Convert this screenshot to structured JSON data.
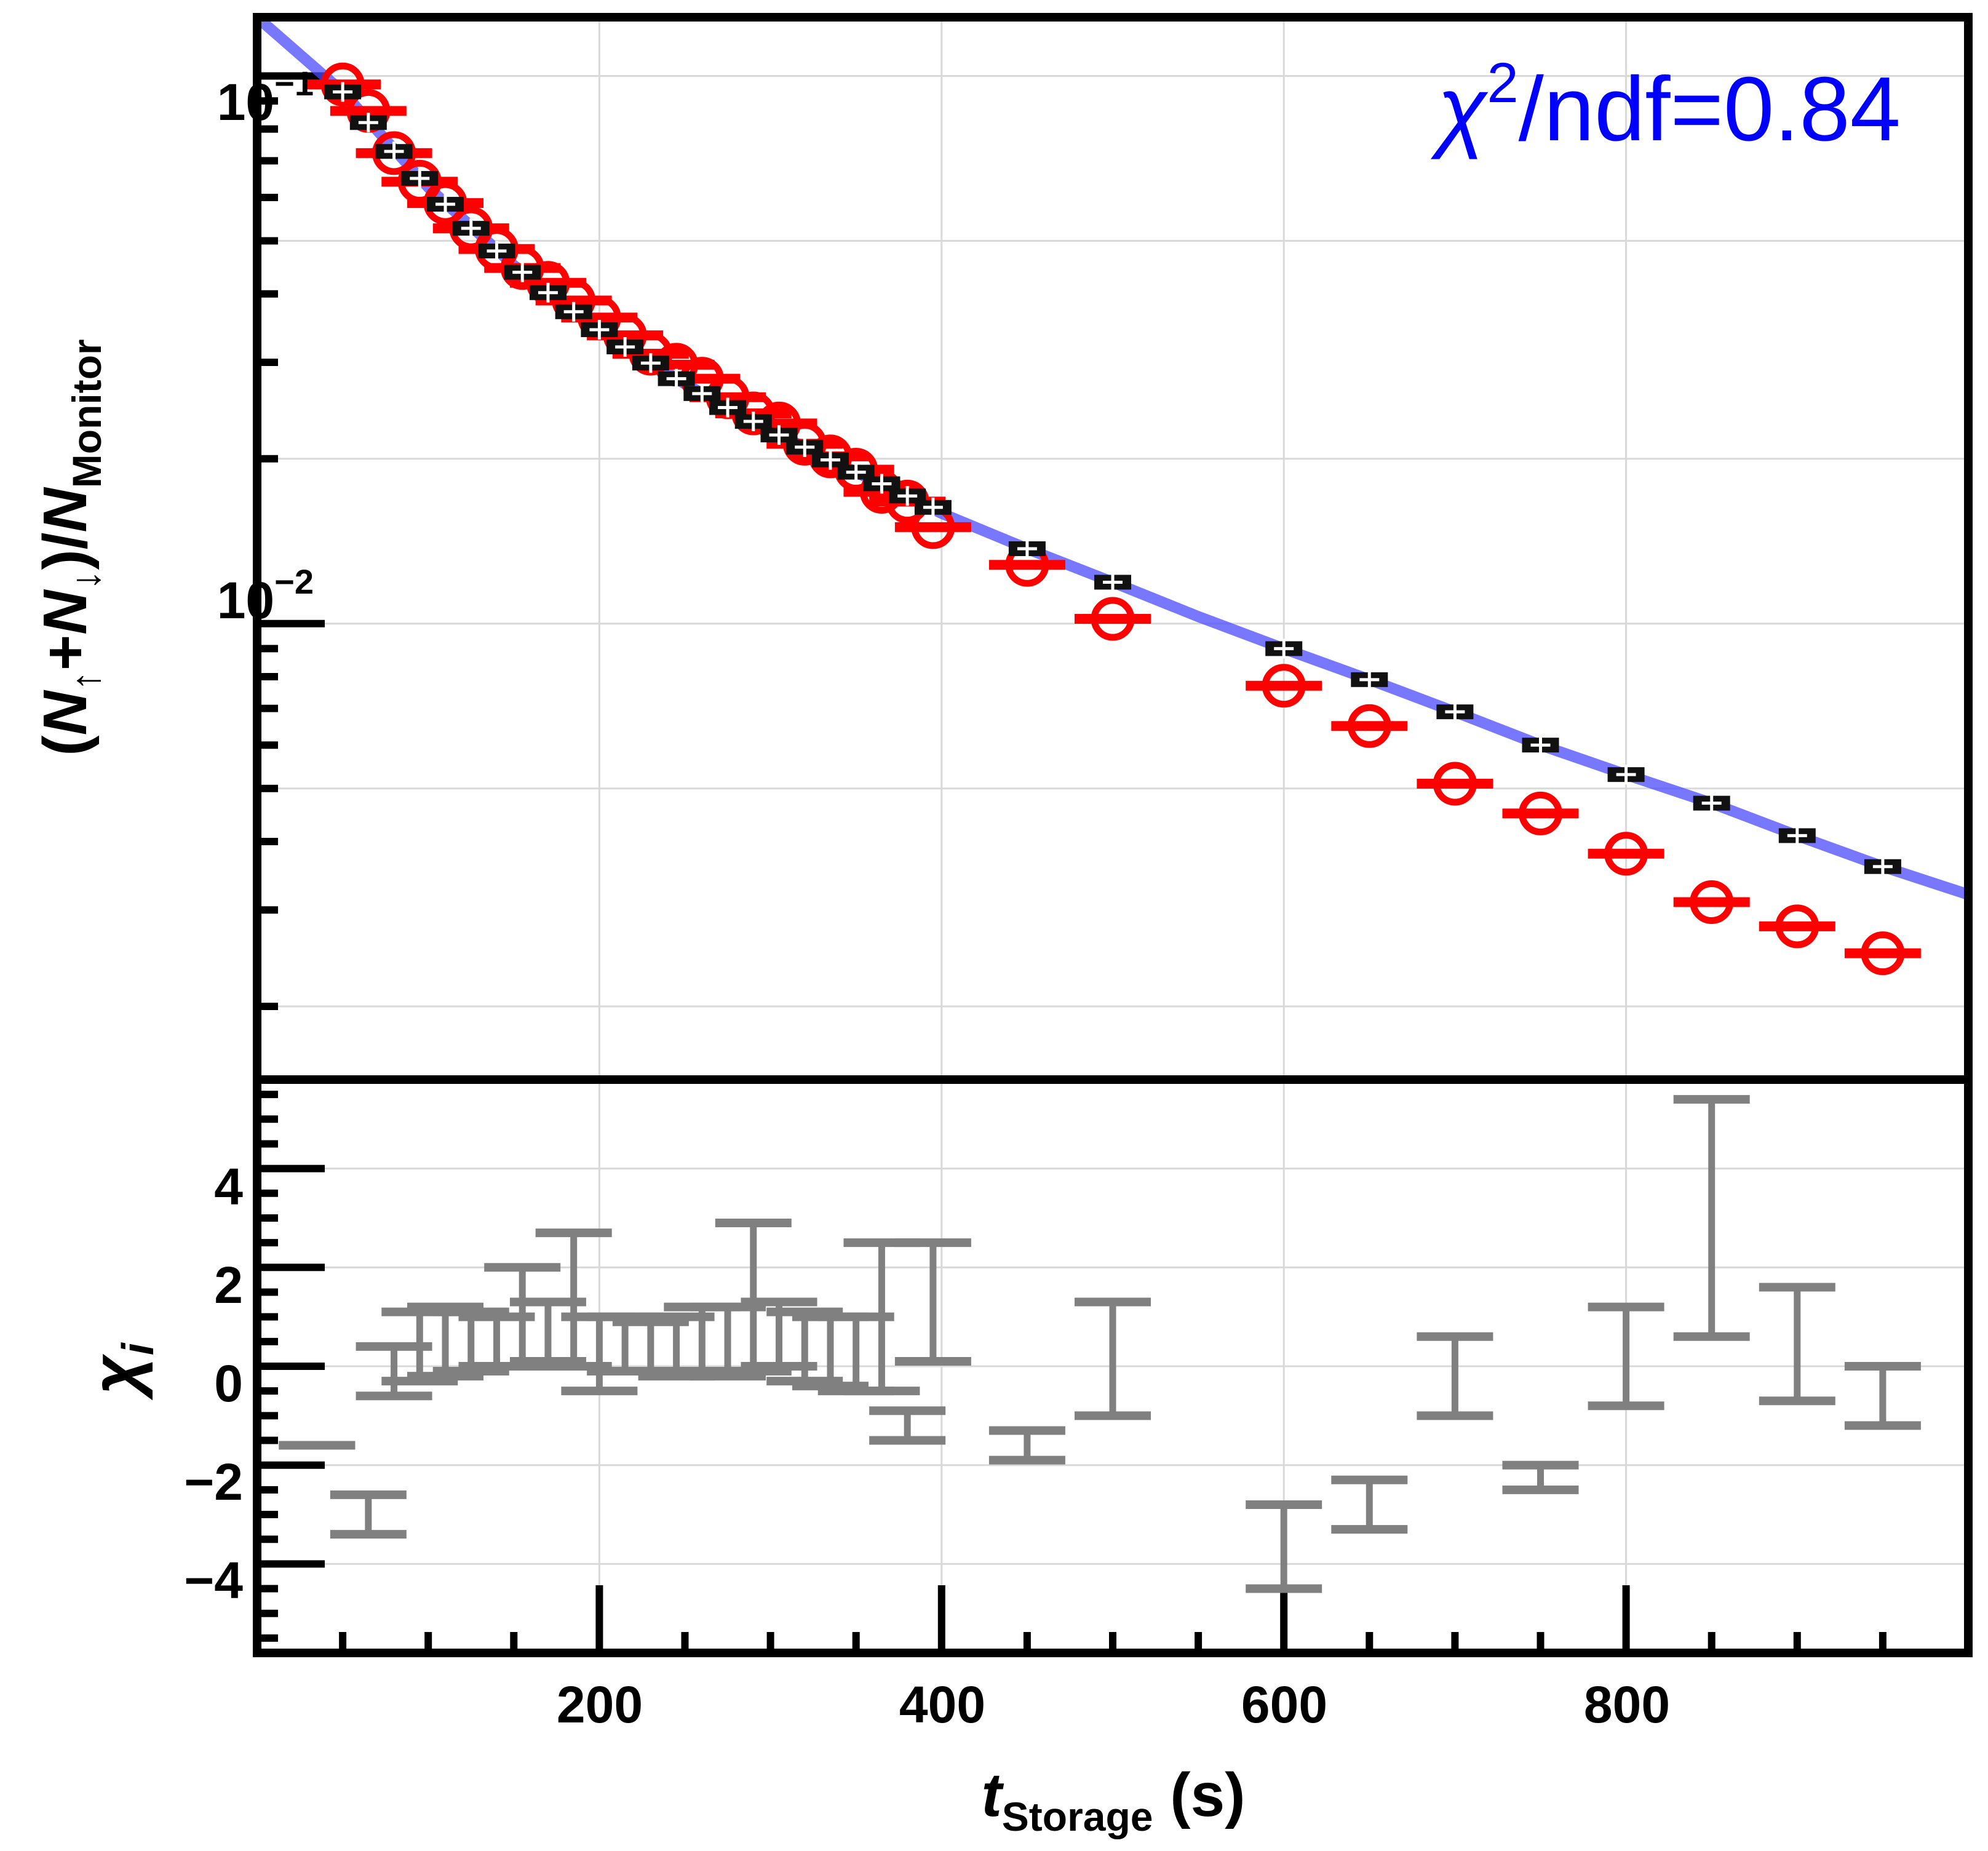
{
  "chart_data": [
    {
      "panel": "top",
      "type": "scatter",
      "yscale": "log",
      "xlim": [
        0,
        1000
      ],
      "ylim": [
        0.00147,
        0.128
      ],
      "ylabel": {
        "open": "(",
        "n1": "N",
        "sub_up": "↑",
        "plus": "+",
        "n2": "N",
        "sub_down": "↓",
        "close": ")/",
        "n3": "N",
        "sub_monitor": "Monitor"
      },
      "ytick_labels": [
        {
          "value": 0.1,
          "base": "10",
          "exp": "−1"
        },
        {
          "value": 0.01,
          "base": "10",
          "exp": "−2"
        }
      ],
      "annotation": {
        "chi": "χ",
        "sup": "2",
        "rest": "/ndf=0.84"
      },
      "colors": {
        "data": "#ff0000",
        "model": "#111111",
        "fit": "#4a4aff",
        "frame": "#000000",
        "grid": "#d9d9d9"
      },
      "series": [
        {
          "name": "data",
          "marker": "open-circle",
          "x": [
            50,
            65,
            80,
            95,
            110,
            125,
            140,
            155,
            170,
            185,
            200,
            215,
            230,
            245,
            260,
            275,
            290,
            305,
            320,
            335,
            350,
            365,
            380,
            395,
            450,
            500,
            600,
            650,
            700,
            750,
            800,
            850,
            900,
            950
          ],
          "y": [
            0.0965,
            0.0863,
            0.0723,
            0.0641,
            0.0586,
            0.0527,
            0.0483,
            0.0446,
            0.0419,
            0.0389,
            0.0362,
            0.0336,
            0.0311,
            0.0297,
            0.028,
            0.0259,
            0.0242,
            0.0232,
            0.0213,
            0.0202,
            0.0191,
            0.0174,
            0.0167,
            0.015,
            0.0128,
            0.0102,
            0.0077,
            0.0065,
            0.0051,
            0.0045,
            0.0038,
            0.0031,
            0.0028,
            0.0025
          ]
        },
        {
          "name": "model",
          "marker": "plus",
          "x": [
            50,
            65,
            80,
            95,
            110,
            125,
            140,
            155,
            170,
            185,
            200,
            215,
            230,
            245,
            260,
            275,
            290,
            305,
            320,
            335,
            350,
            365,
            380,
            395,
            450,
            500,
            600,
            650,
            700,
            750,
            800,
            850,
            900,
            950
          ],
          "y": [
            0.0935,
            0.0822,
            0.0728,
            0.065,
            0.0583,
            0.0527,
            0.0479,
            0.0438,
            0.0402,
            0.0371,
            0.0344,
            0.032,
            0.0299,
            0.028,
            0.0263,
            0.0248,
            0.0234,
            0.0221,
            0.021,
            0.0199,
            0.0189,
            0.018,
            0.0171,
            0.0163,
            0.0137,
            0.0119,
            0.009,
            0.0079,
            0.0069,
            0.006,
            0.0053,
            0.0047,
            0.0041,
            0.0036
          ]
        },
        {
          "name": "fit",
          "marker": "line",
          "x": [
            0,
            50,
            100,
            150,
            200,
            250,
            300,
            350,
            400,
            450,
            500,
            550,
            600,
            650,
            700,
            750,
            800,
            850,
            900,
            950,
            1000
          ],
          "y": [
            0.128,
            0.0935,
            0.0626,
            0.0451,
            0.0344,
            0.0274,
            0.0225,
            0.0189,
            0.0159,
            0.0137,
            0.0119,
            0.0103,
            0.009,
            0.0079,
            0.0069,
            0.006,
            0.0053,
            0.0047,
            0.0041,
            0.0036,
            0.0032
          ]
        }
      ]
    },
    {
      "panel": "bottom",
      "type": "errorbar",
      "xlim": [
        0,
        1000
      ],
      "ylim": [
        -5.8,
        5.8
      ],
      "xlabel": {
        "t": "t",
        "sub": "Storage",
        "unit": " (s)"
      },
      "ylabel": {
        "chi": "χ",
        "sub": "i"
      },
      "xtick_labels": [
        {
          "value": 200,
          "label": "200"
        },
        {
          "value": 400,
          "label": "400"
        },
        {
          "value": 600,
          "label": "600"
        },
        {
          "value": 800,
          "label": "800"
        }
      ],
      "ytick_labels": [
        {
          "value": 4,
          "label": "4"
        },
        {
          "value": 2,
          "label": "2"
        },
        {
          "value": 0,
          "label": "0"
        },
        {
          "value": -2,
          "label": "−2"
        },
        {
          "value": -4,
          "label": "−4"
        }
      ],
      "colors": {
        "bars": "#808080"
      },
      "series": [
        {
          "name": "residuals",
          "x": [
            35,
            65,
            80,
            95,
            110,
            125,
            140,
            155,
            170,
            185,
            200,
            215,
            230,
            245,
            260,
            275,
            290,
            305,
            320,
            335,
            350,
            365,
            380,
            395,
            450,
            500,
            600,
            650,
            700,
            750,
            800,
            850,
            900,
            950
          ],
          "low": [
            -1.6,
            -3.4,
            -0.6,
            -0.3,
            -0.2,
            -0.1,
            0.0,
            0.0,
            0.1,
            0.0,
            -0.5,
            -0.1,
            -0.1,
            -0.2,
            -0.1,
            -0.2,
            -0.1,
            0.0,
            -0.3,
            -0.4,
            -0.5,
            -0.5,
            -1.5,
            0.1,
            -1.9,
            -1.0,
            -4.5,
            -3.3,
            -1.0,
            -2.5,
            -0.8,
            0.6,
            -0.7,
            -1.2
          ],
          "high": [
            -1.6,
            -2.6,
            0.4,
            1.1,
            1.2,
            1.1,
            1.0,
            2.0,
            1.3,
            2.7,
            1.0,
            1.0,
            0.9,
            1.0,
            1.2,
            1.2,
            2.9,
            1.3,
            1.1,
            1.0,
            1.0,
            2.5,
            -0.9,
            2.5,
            -1.3,
            1.3,
            -2.8,
            -2.3,
            0.6,
            -2.0,
            1.2,
            5.4,
            1.6,
            0.0
          ]
        }
      ]
    }
  ]
}
